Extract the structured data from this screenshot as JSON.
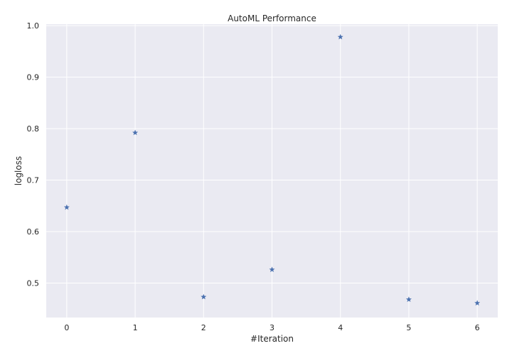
{
  "chart_data": {
    "type": "scatter",
    "title": "AutoML Performance",
    "xlabel": "#Iteration",
    "ylabel": "logloss",
    "marker": "star",
    "color": "#4c72b0",
    "background": "#eaeaf2",
    "grid": true,
    "xlim": [
      -0.3,
      6.3
    ],
    "ylim": [
      0.433,
      1.003
    ],
    "xticks": [
      0,
      1,
      2,
      3,
      4,
      5,
      6
    ],
    "yticks": [
      0.5,
      0.6,
      0.7,
      0.8,
      0.9,
      1.0
    ],
    "ytick_labels": [
      "0.5",
      "0.6",
      "0.7",
      "0.8",
      "0.9",
      "1.0"
    ],
    "points": [
      {
        "x": 0,
        "y": 0.647
      },
      {
        "x": 1,
        "y": 0.792
      },
      {
        "x": 2,
        "y": 0.473
      },
      {
        "x": 3,
        "y": 0.526
      },
      {
        "x": 4,
        "y": 0.978
      },
      {
        "x": 5,
        "y": 0.468
      },
      {
        "x": 6,
        "y": 0.461
      }
    ]
  }
}
